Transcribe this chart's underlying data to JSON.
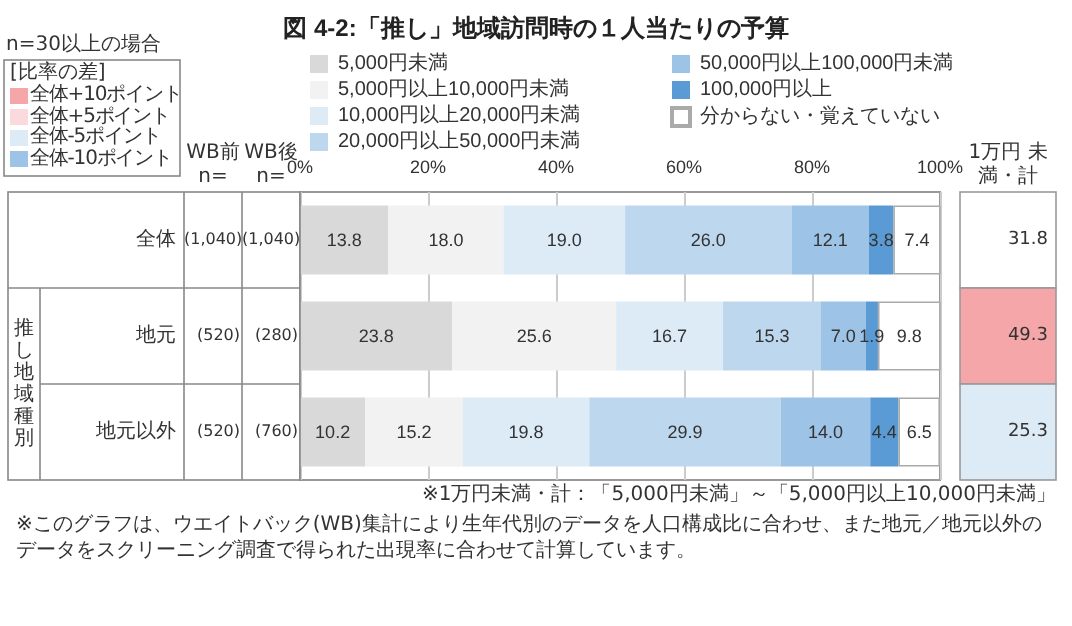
{
  "chart_data": {
    "type": "bar",
    "orientation": "horizontal",
    "stacked": true,
    "title": "図 4-2:「推し」地域訪問時の１人当たりの予算",
    "categories": [
      "全体",
      "地元",
      "地元以外"
    ],
    "series": [
      {
        "name": "5,000円未満",
        "color": "#d9d9d9",
        "values": [
          13.8,
          23.8,
          10.2
        ],
        "value_labels": [
          "13.8",
          "23.8",
          "10.2"
        ]
      },
      {
        "name": "5,000円以上10,000円未満",
        "color": "#f2f2f2",
        "values": [
          18.0,
          25.6,
          15.2
        ],
        "value_labels": [
          "18.0",
          "25.6",
          "15.2"
        ]
      },
      {
        "name": "10,000円以上20,000円未満",
        "color": "#ddebf7",
        "values": [
          19.0,
          16.7,
          19.8
        ],
        "value_labels": [
          "19.0",
          "16.7",
          "19.8"
        ]
      },
      {
        "name": "20,000円以上50,000円未満",
        "color": "#bdd7ee",
        "values": [
          26.0,
          15.3,
          29.9
        ],
        "value_labels": [
          "26.0",
          "15.3",
          "29.9"
        ]
      },
      {
        "name": "50,000円以上100,000円未満",
        "color": "#9dc3e6",
        "values": [
          12.1,
          7.0,
          14.0
        ],
        "value_labels": [
          "12.1",
          "7.0",
          "14.0"
        ]
      },
      {
        "name": "100,000円以上",
        "color": "#5b9bd5",
        "values": [
          3.8,
          1.9,
          4.4
        ],
        "value_labels": [
          "3.8",
          "1.9",
          "4.4"
        ]
      },
      {
        "name": "分からない・覚えていない",
        "color": "#ffffff",
        "values": [
          7.4,
          9.8,
          6.5
        ],
        "value_labels": [
          "7.4",
          "9.8",
          "6.5"
        ]
      }
    ],
    "xlim": [
      0,
      100
    ],
    "xticks": [
      {
        "value": 0,
        "label": "0%"
      },
      {
        "value": 20,
        "label": "20%"
      },
      {
        "value": 40,
        "label": "40%"
      },
      {
        "value": 60,
        "label": "60%"
      },
      {
        "value": 80,
        "label": "80%"
      },
      {
        "value": 100,
        "label": "100%"
      }
    ],
    "grid": "x",
    "legend": "top",
    "annotations": [
      "n=30以上の場合",
      "[比率の差]",
      "全体+10ポイント",
      "全体+5ポイント",
      "全体-5ポイント",
      "全体-10ポイント",
      "WB前 n=",
      "WB後 n=",
      "1万円 未満・計",
      "推し地域種別",
      "(1,040)",
      "(1,040)",
      "(520)",
      "(280)",
      "(520)",
      "(760)",
      "31.8",
      "49.3",
      "25.3",
      "※1万円未満・計：「5,000円未満」～「5,000円以上10,000円未満」",
      "※このグラフは、ウエイトバック(WB)集計により生年代別のデータを人口構成比に合わせ、また地元／地元以外のデータをスクリーニング調査で得られた出現率に合わせて計算しています。"
    ]
  }
}
